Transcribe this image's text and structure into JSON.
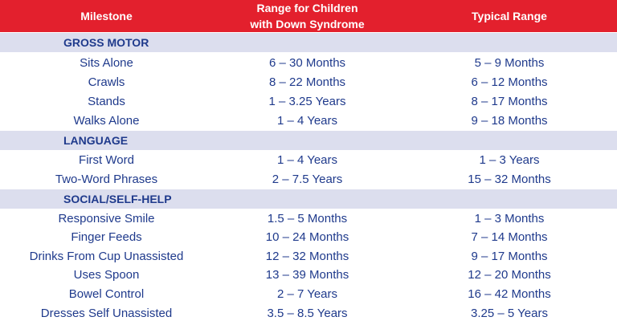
{
  "header": {
    "milestone": "Milestone",
    "range_ds_line1": "Range for Children",
    "range_ds_line2": "with Down Syndrome",
    "typical": "Typical Range"
  },
  "colors": {
    "header_bg": "#e3202d",
    "section_bg": "#dcdeee",
    "text": "#1f3a8c"
  },
  "sections": [
    {
      "title": "GROSS MOTOR",
      "rows": [
        {
          "milestone": "Sits Alone",
          "ds": "6 – 30 Months",
          "typical": "5 – 9 Months"
        },
        {
          "milestone": "Crawls",
          "ds": "8 – 22 Months",
          "typical": "6 – 12 Months"
        },
        {
          "milestone": "Stands",
          "ds": "1 – 3.25 Years",
          "typical": "8 – 17 Months"
        },
        {
          "milestone": "Walks Alone",
          "ds": "1 – 4 Years",
          "typical": "9 – 18 Months"
        }
      ]
    },
    {
      "title": "LANGUAGE",
      "rows": [
        {
          "milestone": "First Word",
          "ds": "1 – 4 Years",
          "typical": "1 – 3 Years"
        },
        {
          "milestone": "Two-Word Phrases",
          "ds": "2 – 7.5 Years",
          "typical": "15 – 32 Months"
        }
      ]
    },
    {
      "title": "SOCIAL/SELF-HELP",
      "rows": [
        {
          "milestone": "Responsive Smile",
          "ds": "1.5 – 5 Months",
          "typical": "1 – 3 Months"
        },
        {
          "milestone": "Finger Feeds",
          "ds": "10 – 24 Months",
          "typical": "7 – 14 Months"
        },
        {
          "milestone": "Drinks From Cup Unassisted",
          "ds": "12 – 32 Months",
          "typical": "9 – 17 Months"
        },
        {
          "milestone": "Uses Spoon",
          "ds": "13 – 39 Months",
          "typical": "12 – 20 Months"
        },
        {
          "milestone": "Bowel Control",
          "ds": "2 – 7 Years",
          "typical": "16 – 42 Months"
        },
        {
          "milestone": "Dresses Self Unassisted",
          "ds": "3.5 – 8.5 Years",
          "typical": "3.25 – 5 Years"
        }
      ]
    }
  ]
}
